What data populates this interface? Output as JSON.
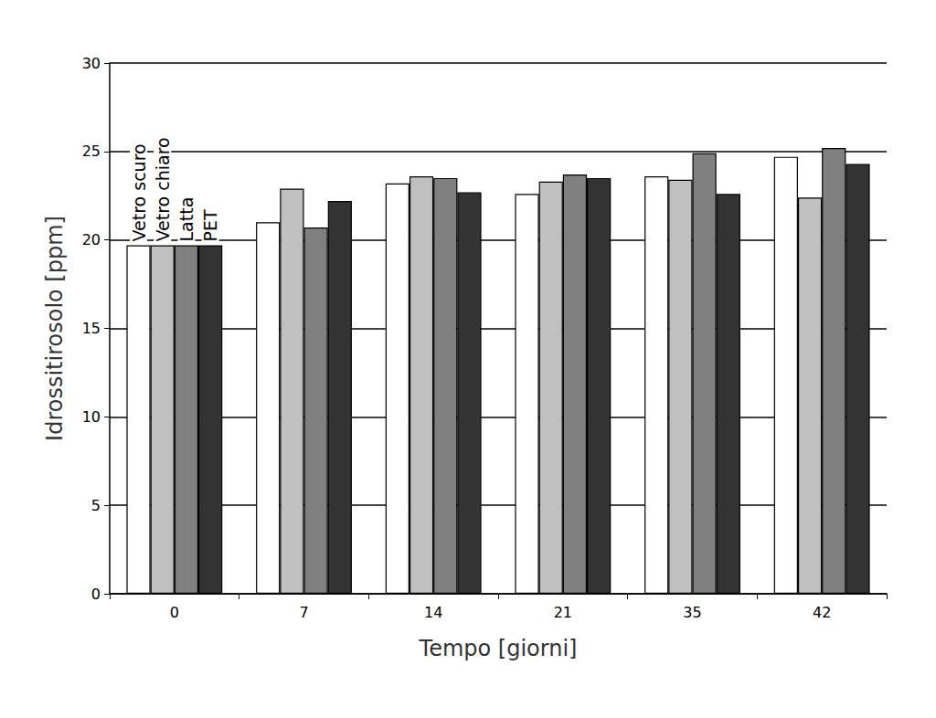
{
  "chart_data": {
    "type": "bar",
    "xlabel": "Tempo [giorni]",
    "ylabel": "Idrossitirosolo [ppm]",
    "categories": [
      "0",
      "7",
      "14",
      "21",
      "35",
      "42"
    ],
    "series": [
      {
        "name": "Vetro scuro",
        "color": "#ffffff",
        "values": [
          19.7,
          21.0,
          23.2,
          22.6,
          23.6,
          24.7
        ]
      },
      {
        "name": "Vetro chiaro",
        "color": "#c0c0c0",
        "values": [
          19.7,
          22.9,
          23.6,
          23.3,
          23.4,
          22.4
        ]
      },
      {
        "name": "Latta",
        "color": "#808080",
        "values": [
          19.7,
          20.7,
          23.5,
          23.7,
          24.9,
          25.2
        ]
      },
      {
        "name": "PET",
        "color": "#333333",
        "values": [
          19.7,
          22.2,
          22.7,
          23.5,
          22.6,
          24.3
        ]
      }
    ],
    "ylim": [
      0,
      30
    ],
    "yticks": [
      0,
      5,
      10,
      15,
      20,
      25,
      30
    ],
    "grid": true
  }
}
